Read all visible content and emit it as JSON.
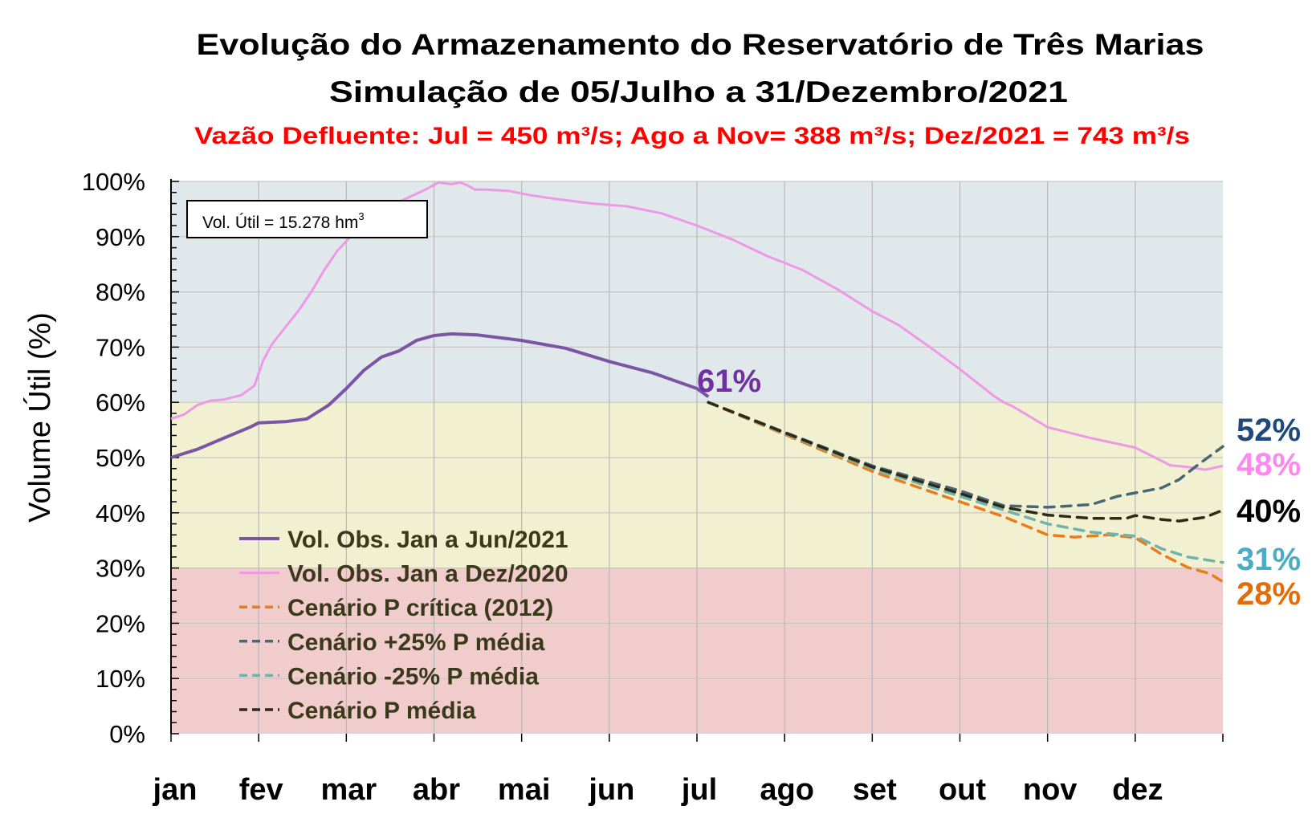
{
  "chart_data": {
    "type": "line",
    "title": "Evolução do Armazenamento do Reservatório de Três Marias",
    "subtitle": "Simulação de 05/Julho a 31/Dezembro/2021",
    "subtitle2": "Vazão Defluente: Jul = 450 m³/s; Ago a Nov= 388 m³/s; Dez/2021 = 743 m³/s",
    "ylabel": "Volume  Útil (%)",
    "xlabel": "",
    "ylim": [
      0,
      100
    ],
    "xlim": [
      0,
      12
    ],
    "grid": true,
    "yticks": [
      "0%",
      "10%",
      "20%",
      "30%",
      "40%",
      "50%",
      "60%",
      "70%",
      "80%",
      "90%",
      "100%"
    ],
    "xticks": [
      "jan",
      "fev",
      "mar",
      "abr",
      "mai",
      "jun",
      "jul",
      "ago",
      "set",
      "out",
      "nov",
      "dez"
    ],
    "bands": [
      {
        "from": 0,
        "to": 30,
        "color": "#f0cccc"
      },
      {
        "from": 30,
        "to": 60,
        "color": "#f1f0d1"
      },
      {
        "from": 60,
        "to": 100,
        "color": "#e1e8eb"
      }
    ],
    "annotation_box": {
      "text": "Vol. Útil  = 15.278 hm",
      "sup": "3"
    },
    "point_label": {
      "text": "61%",
      "color": "#7030a0"
    },
    "legend_placement": "bottom-left",
    "series": [
      {
        "name": "Vol. Obs. Jan a Jun/2021",
        "color": "#7a55a3",
        "dash": false,
        "width": 4,
        "end_label": "",
        "x": [
          0,
          0.3,
          0.6,
          0.9,
          1.0,
          1.3,
          1.55,
          1.8,
          2.0,
          2.2,
          2.4,
          2.6,
          2.8,
          3.0,
          3.2,
          3.5,
          4.0,
          4.5,
          5.0,
          5.5,
          6.0,
          6.13
        ],
        "y": [
          50,
          51.5,
          53.5,
          55.5,
          56.3,
          56.5,
          57,
          59.5,
          62.5,
          65.8,
          68.2,
          69.3,
          71.2,
          72.1,
          72.4,
          72.2,
          71.2,
          69.8,
          67.4,
          65.3,
          62.5,
          61
        ]
      },
      {
        "name": "Vol. Obs. Jan a Dez/2020",
        "color": "#ee99e6",
        "dash": false,
        "width": 3,
        "end_label": "48%",
        "label_color": "#ff88ee",
        "x": [
          0,
          0.15,
          0.3,
          0.45,
          0.6,
          0.8,
          0.95,
          1.05,
          1.15,
          1.3,
          1.45,
          1.6,
          1.75,
          1.9,
          2.05,
          2.3,
          2.6,
          2.9,
          3.05,
          3.2,
          3.3,
          3.38,
          3.47,
          3.6,
          3.85,
          4.1,
          4.4,
          4.8,
          5.2,
          5.6,
          6.0,
          6.4,
          6.8,
          7.2,
          7.6,
          8.0,
          8.3,
          8.7,
          9.0,
          9.4,
          9.5,
          9.6,
          10.0,
          10.5,
          11.0,
          11.2,
          11.4,
          11.6,
          11.8,
          12.0
        ],
        "y": [
          57,
          57.8,
          59.5,
          60.3,
          60.5,
          61.3,
          63,
          67.5,
          70.5,
          73.5,
          76.5,
          80,
          84,
          87.5,
          90,
          93.5,
          96.3,
          98.5,
          99.8,
          99.5,
          99.8,
          99.3,
          98.5,
          98.5,
          98.3,
          97.5,
          96.8,
          96,
          95.5,
          94.2,
          92,
          89.5,
          86.5,
          84,
          80.5,
          76.5,
          74,
          69.5,
          66,
          61,
          60,
          59.3,
          55.5,
          53.5,
          51.8,
          50.2,
          48.6,
          48.3,
          47.8,
          48.5
        ]
      },
      {
        "name": "Cenário P crítica (2012)",
        "color": "#e87d1e",
        "dash": true,
        "width": 3.5,
        "end_label": "28%",
        "label_color": "#e36c09",
        "x": [
          6.13,
          7.0,
          8.0,
          9.0,
          9.5,
          10.0,
          10.3,
          10.7,
          11.0,
          11.3,
          11.6,
          11.85,
          12.0
        ],
        "y": [
          60,
          54.2,
          47.5,
          42,
          39.3,
          36,
          35.6,
          36,
          35.5,
          32.5,
          30.1,
          29,
          27.5
        ]
      },
      {
        "name": "Cenário +25% P média",
        "color": "#496677",
        "dash": true,
        "width": 3.5,
        "end_label": "52%",
        "label_color": "#1f497d",
        "x": [
          6.13,
          7.0,
          8.0,
          9.0,
          9.5,
          10.0,
          10.5,
          10.8,
          11.0,
          11.3,
          11.5,
          11.7,
          12.0
        ],
        "y": [
          60,
          54.6,
          48.5,
          44,
          41.3,
          41,
          41.5,
          43,
          43.6,
          44.5,
          46,
          48.5,
          52
        ]
      },
      {
        "name": "Cenário -25% P média",
        "color": "#6fb3ae",
        "dash": true,
        "width": 3.5,
        "end_label": "31%",
        "label_color": "#4bacc6",
        "x": [
          6.13,
          7.0,
          8.0,
          9.0,
          9.5,
          10.0,
          10.5,
          11.0,
          11.3,
          11.6,
          12.0
        ],
        "y": [
          60,
          54.4,
          48,
          43,
          40.5,
          38,
          36.5,
          35.8,
          33.5,
          32,
          31
        ]
      },
      {
        "name": "Cenário P média",
        "color": "#2d2a17",
        "dash": true,
        "width": 3.5,
        "end_label": "40%",
        "label_color": "#000000",
        "x": [
          6.13,
          7.0,
          8.0,
          9.0,
          9.5,
          10.0,
          10.5,
          10.9,
          11.0,
          11.3,
          11.5,
          11.8,
          12.0
        ],
        "y": [
          60,
          54.5,
          48.3,
          43.5,
          41,
          39.6,
          39,
          39,
          39.5,
          38.8,
          38.5,
          39.2,
          40.5
        ]
      }
    ]
  }
}
